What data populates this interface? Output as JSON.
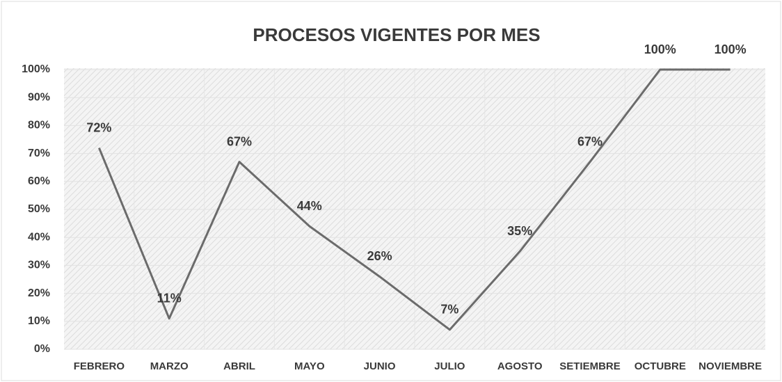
{
  "chart_data": {
    "type": "line",
    "title": "PROCESOS VIGENTES POR MES",
    "categories": [
      "FEBRERO",
      "MARZO",
      "ABRIL",
      "MAYO",
      "JUNIO",
      "JULIO",
      "AGOSTO",
      "SETIEMBRE",
      "OCTUBRE",
      "NOVIEMBRE"
    ],
    "values": [
      72,
      11,
      67,
      44,
      26,
      7,
      35,
      67,
      100,
      100
    ],
    "value_labels": [
      "72%",
      "11%",
      "67%",
      "44%",
      "26%",
      "7%",
      "35%",
      "67%",
      "100%",
      "100%"
    ],
    "color": "#6b6b6b",
    "ylim": [
      0,
      100
    ],
    "yticks": [
      {
        "value": 0,
        "label": "0%"
      },
      {
        "value": 10,
        "label": "10%"
      },
      {
        "value": 20,
        "label": "20%"
      },
      {
        "value": 30,
        "label": "30%"
      },
      {
        "value": 40,
        "label": "40%"
      },
      {
        "value": 50,
        "label": "50%"
      },
      {
        "value": 60,
        "label": "60%"
      },
      {
        "value": 70,
        "label": "70%"
      },
      {
        "value": 80,
        "label": "80%"
      },
      {
        "value": 90,
        "label": "90%"
      },
      {
        "value": 100,
        "label": "100%"
      }
    ],
    "grid": true
  }
}
